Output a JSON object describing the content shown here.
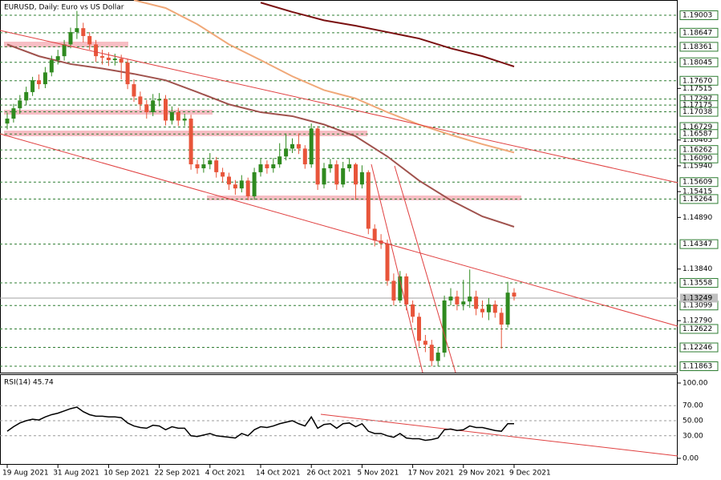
{
  "chart_data": {
    "type": "candlestick",
    "title": "EURUSD, Daily:  Euro vs US Dollar",
    "up_color": "#2f8a1f",
    "down_color": "#e8553a",
    "level_color": "#2e7d32",
    "categories": [
      "19 Aug 2021",
      null,
      null,
      null,
      null,
      null,
      null,
      null,
      "31 Aug 2021",
      null,
      null,
      null,
      null,
      null,
      null,
      null,
      "10 Sep 2021",
      null,
      null,
      null,
      null,
      null,
      null,
      null,
      "22 Sep 2021",
      null,
      null,
      null,
      null,
      null,
      null,
      null,
      "4 Oct 2021",
      null,
      null,
      null,
      null,
      null,
      null,
      null,
      "14 Oct 2021",
      null,
      null,
      null,
      null,
      null,
      null,
      null,
      "26 Oct 2021",
      null,
      null,
      null,
      null,
      null,
      null,
      null,
      "5 Nov 2021",
      null,
      null,
      null,
      null,
      null,
      null,
      null,
      "17 Nov 2021",
      null,
      null,
      null,
      null,
      null,
      null,
      null,
      "29 Nov 2021",
      null,
      null,
      null,
      null,
      null,
      null,
      null,
      "9 Dec 2021"
    ],
    "open": [
      1.168,
      1.169,
      1.1711,
      1.1727,
      1.1744,
      1.1768,
      1.176,
      1.1784,
      1.1809,
      1.1817,
      1.1841,
      1.1866,
      1.1874,
      1.1858,
      1.1841,
      1.1817,
      1.1814,
      1.1809,
      1.1812,
      1.1804,
      1.176,
      1.1735,
      1.1719,
      1.1703,
      1.1727,
      1.173,
      1.1686,
      1.1703,
      1.1686,
      1.169,
      1.1597,
      1.1589,
      1.1597,
      1.1605,
      1.1581,
      1.1572,
      1.1556,
      1.1548,
      1.1564,
      1.1532,
      1.1581,
      1.1597,
      1.1589,
      1.1597,
      1.1613,
      1.1629,
      1.1638,
      1.1629,
      1.1597,
      1.167,
      1.1556,
      1.1589,
      1.1597,
      1.1556,
      1.1589,
      1.1597,
      1.1556,
      1.1581,
      1.1466,
      1.1442,
      1.1436,
      1.136,
      1.132,
      1.1369,
      1.1312,
      1.1287,
      1.1238,
      1.123,
      1.1197,
      1.1214,
      1.132,
      1.1328,
      1.1312,
      1.1318,
      1.1328,
      1.1303,
      1.1296,
      1.1312,
      1.1295,
      1.1271,
      1.1336
    ],
    "high": [
      1.1702,
      1.172,
      1.1738,
      1.1755,
      1.1775,
      1.178,
      1.1795,
      1.1818,
      1.183,
      1.185,
      1.1875,
      1.1909,
      1.1885,
      1.1866,
      1.185,
      1.183,
      1.1825,
      1.1822,
      1.182,
      1.1812,
      1.177,
      1.1745,
      1.1728,
      1.174,
      1.1742,
      1.1738,
      1.1715,
      1.1712,
      1.17,
      1.1698,
      1.1606,
      1.1608,
      1.162,
      1.1612,
      1.159,
      1.158,
      1.1565,
      1.1575,
      1.157,
      1.159,
      1.1608,
      1.1605,
      1.161,
      1.164,
      1.166,
      1.165,
      1.166,
      1.1636,
      1.168,
      1.1675,
      1.16,
      1.1608,
      1.1605,
      1.1602,
      1.161,
      1.16,
      1.1595,
      1.1585,
      1.1475,
      1.1455,
      1.1444,
      1.1375,
      1.138,
      1.1375,
      1.132,
      1.1295,
      1.125,
      1.124,
      1.1225,
      1.133,
      1.1345,
      1.134,
      1.1362,
      1.1383,
      1.134,
      1.132,
      1.1325,
      1.132,
      1.1305,
      1.1358,
      1.1345
    ],
    "low": [
      1.1668,
      1.1682,
      1.17,
      1.1718,
      1.1736,
      1.175,
      1.1752,
      1.1776,
      1.18,
      1.1808,
      1.1833,
      1.1852,
      1.1845,
      1.183,
      1.1805,
      1.18,
      1.1797,
      1.1798,
      1.177,
      1.175,
      1.1724,
      1.1708,
      1.169,
      1.1695,
      1.1715,
      1.1676,
      1.1678,
      1.1675,
      1.1675,
      1.1586,
      1.1578,
      1.158,
      1.1587,
      1.157,
      1.156,
      1.1545,
      1.1535,
      1.154,
      1.1524,
      1.1525,
      1.1572,
      1.1578,
      1.158,
      1.159,
      1.1605,
      1.162,
      1.1618,
      1.1588,
      1.159,
      1.1545,
      1.1548,
      1.158,
      1.1545,
      1.155,
      1.1582,
      1.1525,
      1.1548,
      1.1455,
      1.143,
      1.1425,
      1.135,
      1.131,
      1.1315,
      1.13,
      1.1275,
      1.1226,
      1.1215,
      1.1186,
      1.1186,
      1.1205,
      1.131,
      1.13,
      1.13,
      1.1305,
      1.129,
      1.1285,
      1.128,
      1.1285,
      1.1222,
      1.1265,
      1.132
    ],
    "close": [
      1.169,
      1.1711,
      1.1727,
      1.1744,
      1.1768,
      1.176,
      1.1784,
      1.1809,
      1.1817,
      1.1841,
      1.1866,
      1.1874,
      1.1858,
      1.1841,
      1.1817,
      1.1814,
      1.1809,
      1.1812,
      1.1804,
      1.176,
      1.1735,
      1.1719,
      1.1703,
      1.1727,
      1.173,
      1.1686,
      1.1703,
      1.1686,
      1.169,
      1.1597,
      1.1589,
      1.1597,
      1.1605,
      1.1581,
      1.1572,
      1.1556,
      1.1548,
      1.1564,
      1.1532,
      1.1581,
      1.1597,
      1.1589,
      1.1597,
      1.1613,
      1.1629,
      1.1638,
      1.1629,
      1.1597,
      1.167,
      1.1556,
      1.1589,
      1.1597,
      1.1556,
      1.1589,
      1.1597,
      1.1556,
      1.1581,
      1.1466,
      1.1442,
      1.1436,
      1.136,
      1.132,
      1.1369,
      1.1312,
      1.1287,
      1.1238,
      1.123,
      1.1197,
      1.1214,
      1.132,
      1.1328,
      1.1312,
      1.1318,
      1.1328,
      1.1303,
      1.1296,
      1.1312,
      1.1295,
      1.1271,
      1.1336,
      1.1328
    ],
    "moving_averages": [
      {
        "color": "#a0524d",
        "x": [
          0,
          5,
          10,
          15,
          20,
          25,
          30,
          35,
          40,
          45,
          50,
          55,
          60,
          65,
          70,
          75,
          80
        ],
        "values": [
          1.1841,
          1.1817,
          1.1801,
          1.1792,
          1.1781,
          1.1768,
          1.1744,
          1.1719,
          1.1703,
          1.1695,
          1.1678,
          1.1654,
          1.1613,
          1.1564,
          1.1524,
          1.1491,
          1.147
        ]
      },
      {
        "color": "#f0a878",
        "x": [
          20,
          25,
          30,
          35,
          40,
          45,
          50,
          55,
          60,
          65,
          70,
          75,
          80
        ],
        "values": [
          1.1931,
          1.1915,
          1.1882,
          1.1841,
          1.1809,
          1.1776,
          1.1748,
          1.1731,
          1.1703,
          1.1678,
          1.1657,
          1.1638,
          1.1621
        ]
      },
      {
        "color": "#7a1010",
        "x": [
          40,
          45,
          50,
          55,
          60,
          65,
          70,
          75,
          80
        ],
        "values": [
          1.1926,
          1.1907,
          1.189,
          1.1879,
          1.1866,
          1.1853,
          1.1833,
          1.1817,
          1.1796
        ]
      }
    ],
    "ylim": [
      1.11733,
      1.19313
    ],
    "yticks": [
      1.17515,
      1.16465,
      {
        "value": 1.1594,
        "label": "1.15940"
      },
      1.15415,
      {
        "value": 1.1489,
        "label": "1.14890"
      },
      {
        "value": 1.1384,
        "label": "1.13840"
      },
      {
        "value": 1.1279,
        "label": "1.12790"
      }
    ],
    "levels": [
      1.19003,
      1.18647,
      1.18361,
      1.18045,
      {
        "value": 1.1767,
        "label": "1.17670"
      },
      1.17297,
      1.17175,
      1.17038,
      1.16729,
      1.16587,
      1.16262,
      {
        "value": 1.1609,
        "label": "1.16090"
      },
      1.15609,
      1.15264,
      1.14347,
      1.13558,
      1.13099,
      1.12622,
      1.12246,
      1.11863
    ],
    "current_price": 1.13249,
    "rsi_label": "RSI(14) 45.74",
    "rsi_ylim": [
      0,
      100
    ],
    "rsi_yticks": [
      {
        "value": 100,
        "label": "100.00"
      },
      {
        "value": 70,
        "label": "70.00"
      },
      {
        "value": 50,
        "label": "50.00"
      },
      {
        "value": 30,
        "label": "30.00"
      },
      {
        "value": 0,
        "label": "0.00"
      }
    ],
    "rsi": [
      36,
      42,
      47,
      50,
      52,
      51,
      55,
      58,
      60,
      63,
      66,
      68,
      62,
      58,
      56,
      56,
      55,
      55,
      54,
      47,
      43,
      41,
      40,
      44,
      43,
      38,
      42,
      40,
      40,
      30,
      29,
      31,
      33,
      30,
      29,
      28,
      27,
      33,
      30,
      38,
      42,
      41,
      43,
      46,
      48,
      50,
      46,
      43,
      55,
      40,
      45,
      46,
      40,
      46,
      47,
      42,
      46,
      36,
      33,
      33,
      30,
      28,
      33,
      27,
      26,
      26,
      24,
      25,
      27,
      38,
      39,
      37,
      38,
      43,
      41,
      41,
      39,
      37,
      36,
      46,
      46
    ]
  }
}
